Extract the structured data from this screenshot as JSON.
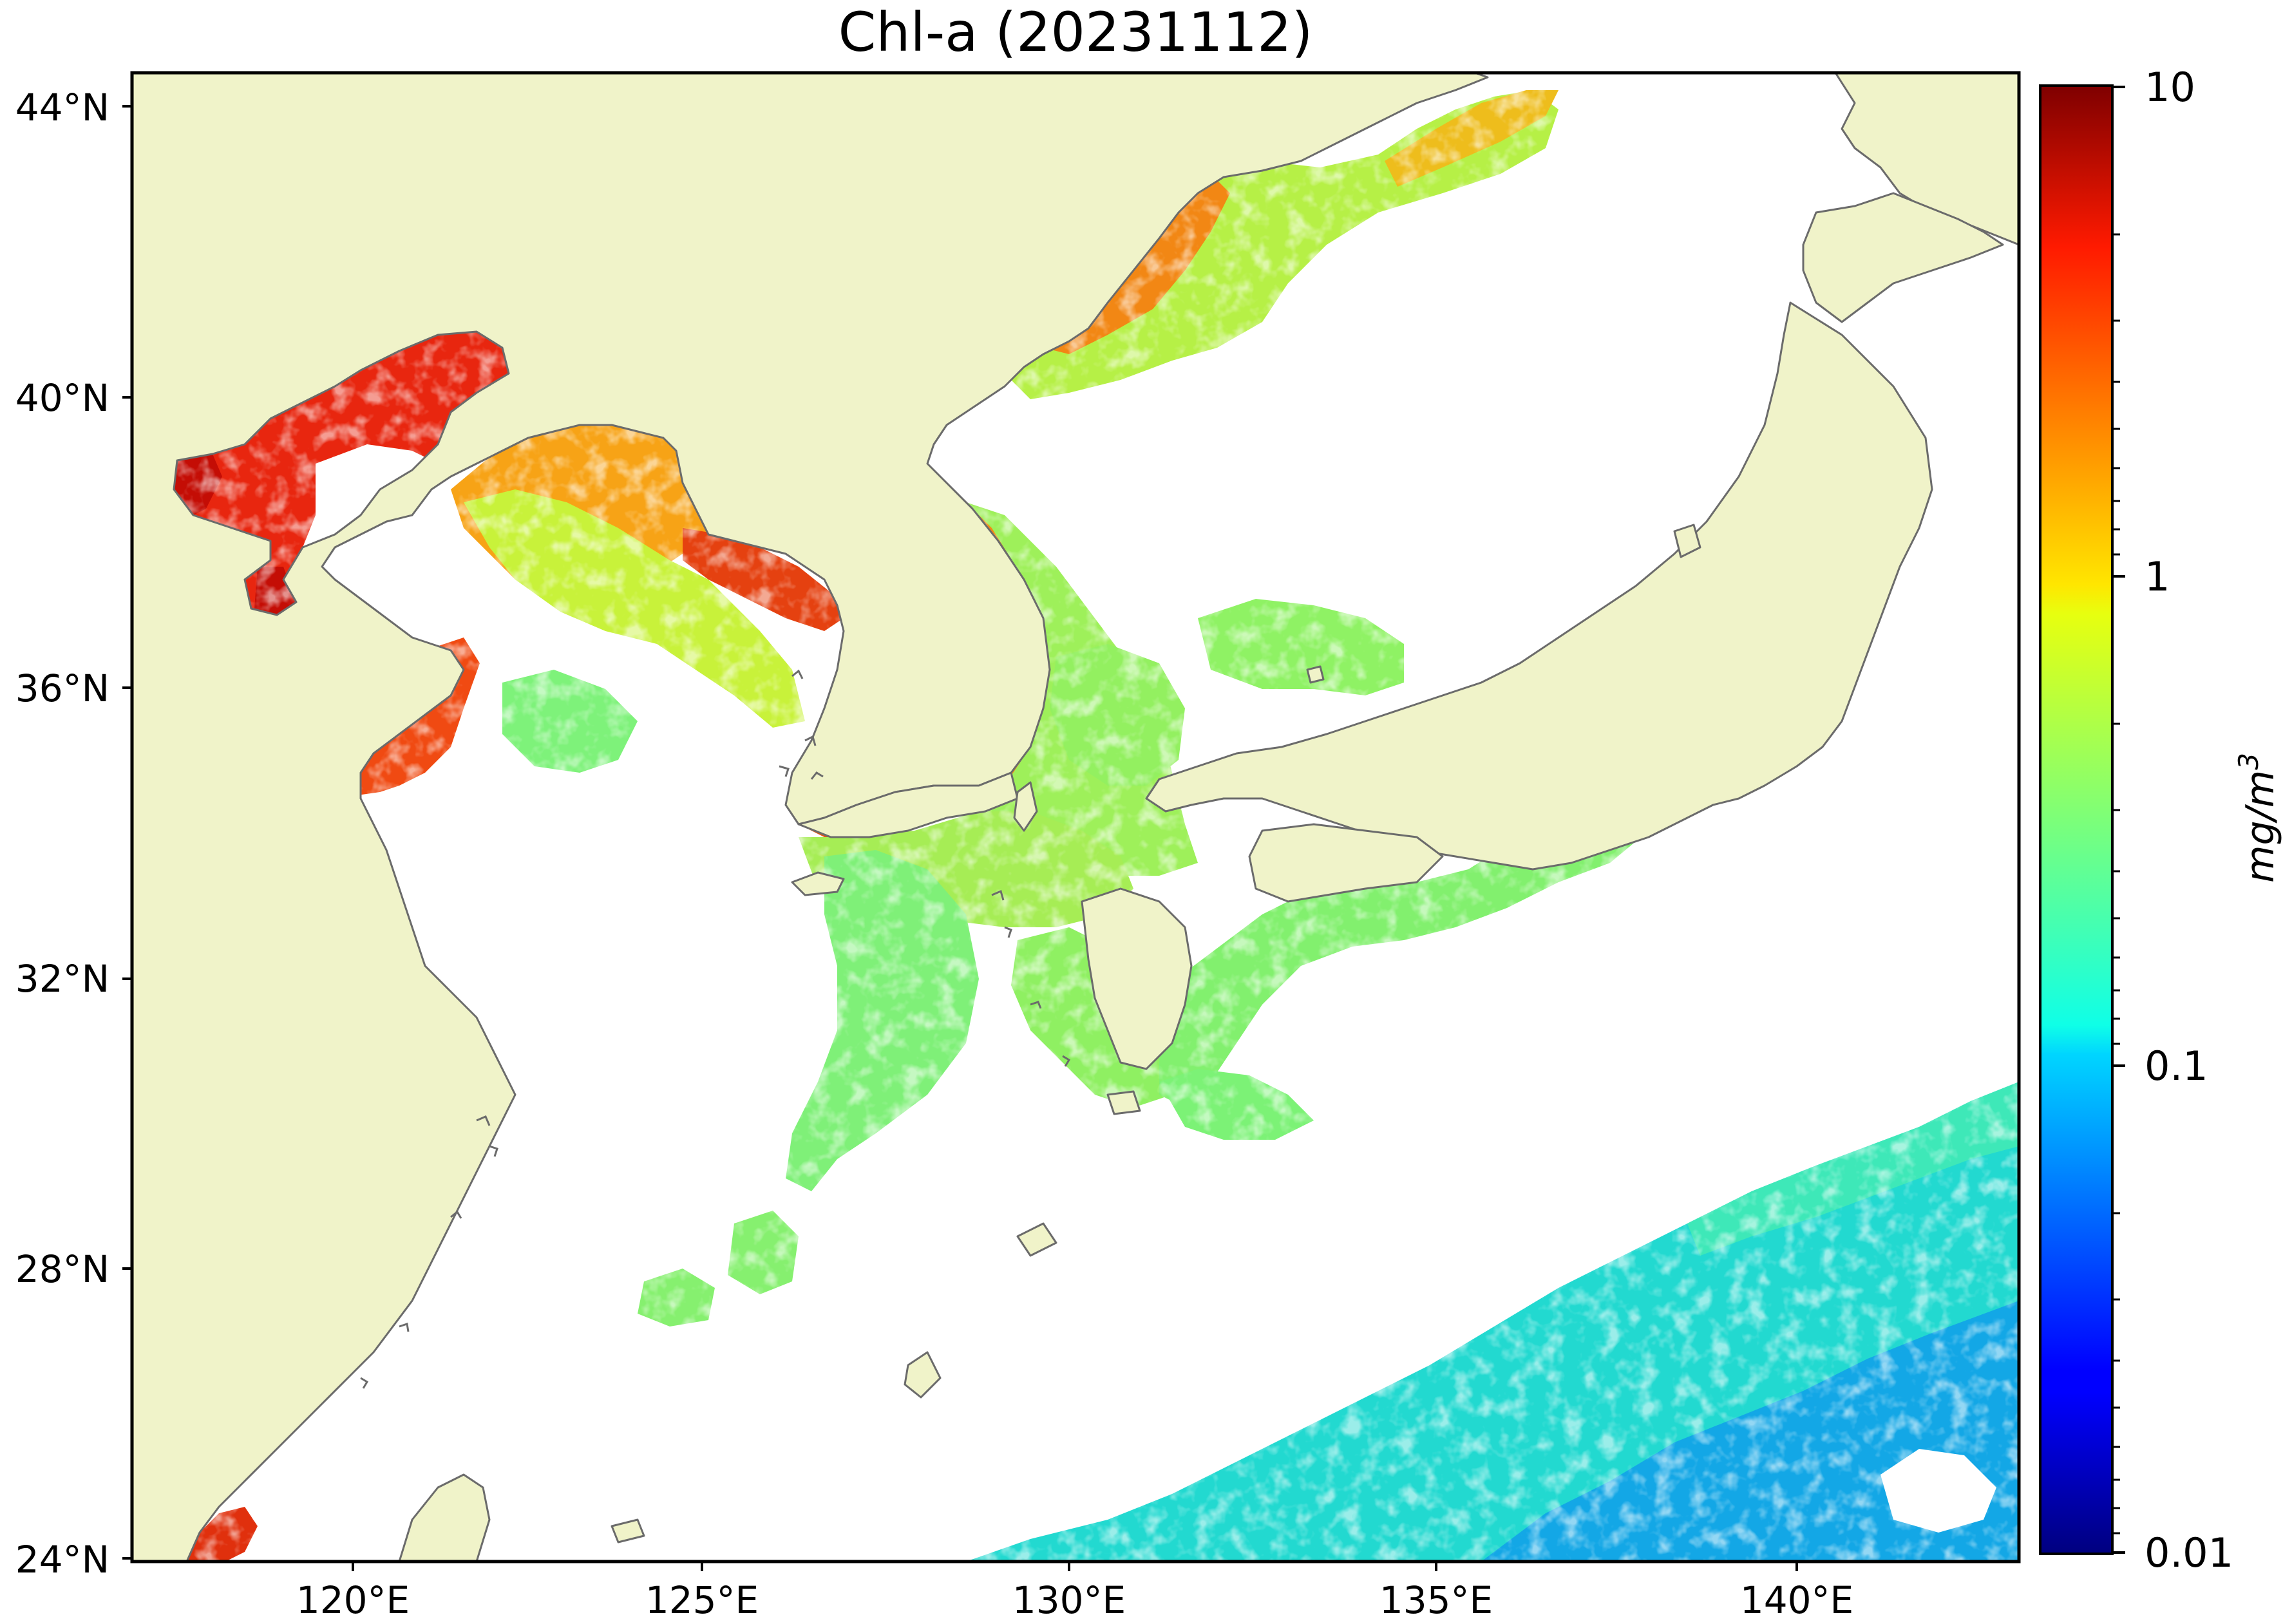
{
  "title": "Chl-a (20231112)",
  "map": {
    "land_color": "#f0f3c9",
    "coast_color": "#6b6b6b",
    "lat_labels": [
      "44°N",
      "40°N",
      "36°N",
      "32°N",
      "28°N",
      "24°N"
    ],
    "lon_labels": [
      "120°E",
      "125°E",
      "130°E",
      "135°E",
      "140°E"
    ]
  },
  "colorbar": {
    "label": "mg/m3",
    "label_base": "mg/m",
    "label_exp": "3",
    "colormap": "jet",
    "scale": "log",
    "range": [
      0.01,
      10
    ],
    "tick_labels": [
      "10",
      "1",
      "0.1",
      "0.01"
    ]
  }
}
